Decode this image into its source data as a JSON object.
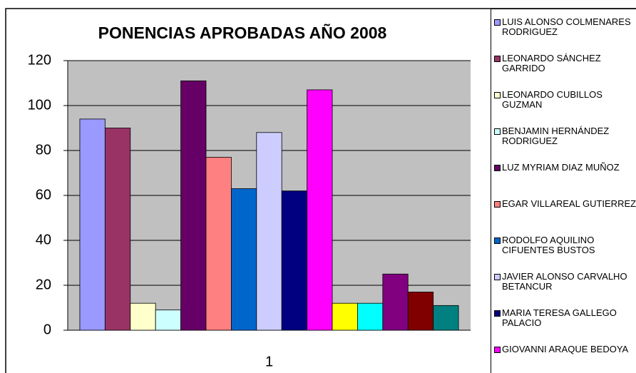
{
  "chart_data": {
    "type": "bar",
    "title": "PONENCIAS APROBADAS AÑO 2008",
    "categories": [
      "1"
    ],
    "series": [
      {
        "name": "LUIS ALONSO COLMENARES RODRIGUEZ",
        "color": "#9999ff",
        "values": [
          94
        ]
      },
      {
        "name": "LEONARDO SÁNCHEZ GARRIDO",
        "color": "#993366",
        "values": [
          90
        ]
      },
      {
        "name": "LEONARDO CUBILLOS GUZMAN",
        "color": "#ffffcc",
        "values": [
          12
        ]
      },
      {
        "name": "BENJAMIN HERNÁNDEZ RODRIGUEZ",
        "color": "#ccffff",
        "values": [
          9
        ]
      },
      {
        "name": "LUZ MYRIAM DIAZ MUÑOZ",
        "color": "#660066",
        "values": [
          111
        ]
      },
      {
        "name": "EGAR VILLAREAL GUTIERREZ",
        "color": "#ff8080",
        "values": [
          77
        ]
      },
      {
        "name": "RODOLFO AQUILINO CIFUENTES BUSTOS",
        "color": "#0066cc",
        "values": [
          63
        ]
      },
      {
        "name": "JAVIER ALONSO CARVALHO BETANCUR",
        "color": "#ccccff",
        "values": [
          88
        ]
      },
      {
        "name": "MARIA TERESA GALLEGO PALACIO",
        "color": "#000080",
        "values": [
          62
        ]
      },
      {
        "name": "GIOVANNI ARAQUE BEDOYA",
        "color": "#ff00ff",
        "values": [
          107
        ]
      },
      {
        "color": "#ffff00",
        "values": [
          12
        ]
      },
      {
        "color": "#00ffff",
        "values": [
          12
        ]
      },
      {
        "color": "#800080",
        "values": [
          25
        ]
      },
      {
        "color": "#800000",
        "values": [
          17
        ]
      },
      {
        "color": "#008080",
        "values": [
          11
        ]
      }
    ],
    "ylim": [
      0,
      120
    ],
    "yticks": [
      0,
      20,
      40,
      60,
      80,
      100,
      120
    ],
    "grid": true,
    "legend": "right"
  }
}
